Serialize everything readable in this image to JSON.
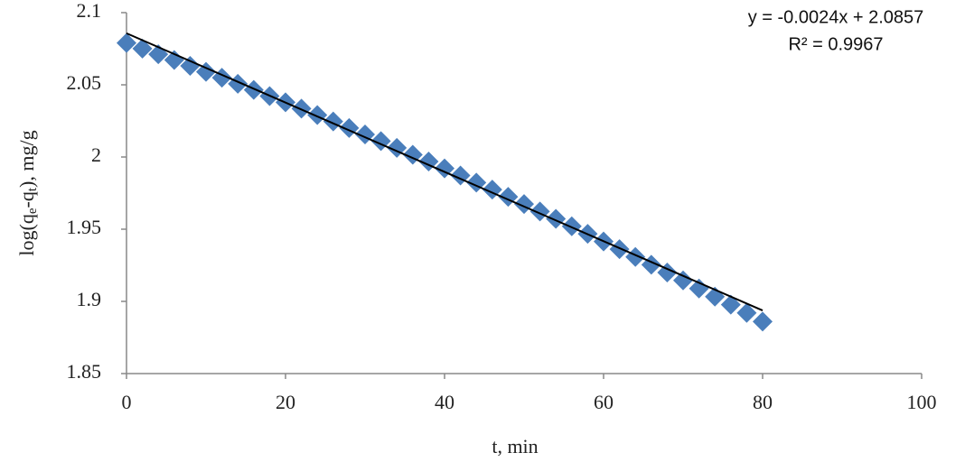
{
  "chart_data": {
    "type": "scatter",
    "x_label": "t, min",
    "y_label_parts": [
      "log(q",
      "e",
      "-q",
      "t",
      "),  mg/g"
    ],
    "xlim": [
      0,
      100
    ],
    "xticks": [
      0,
      20,
      40,
      60,
      80,
      100
    ],
    "ylim": [
      1.85,
      2.1
    ],
    "yticks": [
      {
        "value": 1.85,
        "label": "1.85"
      },
      {
        "value": 1.9,
        "label": "1.9"
      },
      {
        "value": 1.95,
        "label": "1.95"
      },
      2,
      {
        "value": 2.05,
        "label": "2.05"
      },
      {
        "value": 2.1,
        "label": "2.1"
      }
    ],
    "grid": false,
    "series": [
      {
        "color": "#4a7ebb",
        "x": [
          0,
          2,
          4,
          6,
          8,
          10,
          12,
          14,
          16,
          18,
          20,
          22,
          24,
          26,
          28,
          30,
          32,
          34,
          36,
          38,
          40,
          42,
          44,
          46,
          48,
          50,
          52,
          54,
          56,
          58,
          60,
          62,
          64,
          66,
          68,
          70,
          72,
          74,
          76,
          78,
          80
        ],
        "values": [
          2.079,
          2.0751,
          2.0712,
          2.0672,
          2.0631,
          2.059,
          2.0549,
          2.0507,
          2.0465,
          2.0422,
          2.0379,
          2.0335,
          2.0291,
          2.0246,
          2.0201,
          2.0156,
          2.011,
          2.0063,
          2.0016,
          1.9969,
          1.9921,
          1.9872,
          1.9823,
          1.9774,
          1.9724,
          1.9674,
          1.9623,
          1.9572,
          1.952,
          1.9468,
          1.9415,
          1.9362,
          1.9308,
          1.9254,
          1.92,
          1.9145,
          1.9089,
          1.9033,
          1.8977,
          1.892,
          1.886
        ]
      }
    ],
    "trendline": {
      "slope": -0.0024,
      "intercept": 2.0857,
      "color": "#000000",
      "equation": "y = -0.0024x + 2.0857",
      "r_squared": "R² = 0.9967"
    }
  }
}
